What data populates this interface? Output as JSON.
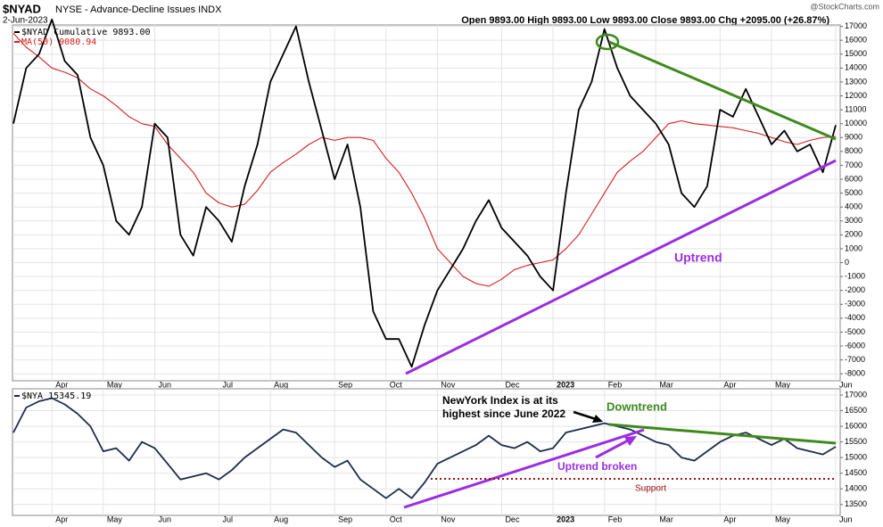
{
  "header": {
    "symbol": "$NYAD",
    "name": "NYSE - Advance-Decline Issues  INDX",
    "date": "2-Jun-2023",
    "quote": "Open 9893.00  High 9893.00  Low 9893.00  Close 9893.00  Chg +2095.00 (+26.87%)",
    "source": "@StockCharts.com"
  },
  "chart_data": [
    {
      "type": "line",
      "categories": [
        null,
        null,
        null,
        "Apr",
        null,
        null,
        null,
        "May",
        null,
        null,
        null,
        "Jun",
        null,
        null,
        null,
        null,
        "Jul",
        null,
        null,
        null,
        "Aug",
        null,
        null,
        null,
        null,
        "Sep",
        null,
        null,
        null,
        "Oct",
        null,
        null,
        null,
        "Nov",
        null,
        null,
        null,
        null,
        "Dec",
        null,
        null,
        null,
        "2023",
        null,
        null,
        null,
        "Feb",
        null,
        null,
        null,
        "Mar",
        null,
        null,
        null,
        null,
        "Apr",
        null,
        null,
        null,
        "May",
        null,
        null,
        null,
        null,
        "Jun"
      ],
      "series": [
        {
          "name": "$NYAD Cumulative 9893.00",
          "color": "#000000",
          "values": [
            10000,
            14000,
            15000,
            17500,
            14500,
            13500,
            9000,
            7000,
            3000,
            2000,
            4000,
            10000,
            9000,
            2000,
            500,
            4000,
            3000,
            1500,
            5500,
            8500,
            13000,
            15000,
            17000,
            13000,
            9500,
            6000,
            8500,
            4000,
            -3500,
            -5500,
            -5500,
            -7500,
            -4500,
            -2000,
            -500,
            1000,
            3000,
            4500,
            2500,
            1500,
            500,
            -1000,
            -2000,
            5000,
            11000,
            13000,
            16800,
            14000,
            12000,
            11000,
            10000,
            8500,
            5000,
            4000,
            5500,
            11000,
            10500,
            12500,
            10500,
            8500,
            9500,
            8000,
            8500,
            6500,
            9893
          ]
        },
        {
          "name": "MA(50) 9080.94",
          "color": "#d62020",
          "values": [
            16500,
            15500,
            14800,
            14000,
            13700,
            13300,
            12500,
            12000,
            11300,
            10500,
            10000,
            9800,
            8500,
            7500,
            6500,
            5000,
            4300,
            4000,
            4200,
            5200,
            6500,
            7200,
            7800,
            8500,
            9000,
            8800,
            9000,
            9000,
            8800,
            7500,
            6500,
            5000,
            3200,
            1000,
            0,
            -1000,
            -1500,
            -1700,
            -1200,
            -500,
            -200,
            0,
            200,
            1000,
            2000,
            3500,
            5000,
            6500,
            7300,
            8000,
            9000,
            10000,
            10200,
            10000,
            9900,
            9800,
            9700,
            9500,
            9300,
            9000,
            8700,
            8500,
            8800,
            9000,
            9080.94
          ]
        }
      ],
      "ylim": [
        -8500,
        17100
      ],
      "yticks": [
        -8000,
        -7000,
        -6000,
        -5000,
        -4000,
        -3000,
        -2000,
        -1000,
        0,
        1000,
        2000,
        3000,
        4000,
        5000,
        6000,
        7000,
        8000,
        9000,
        10000,
        11000,
        12000,
        13000,
        14000,
        15000,
        16000,
        17000
      ],
      "grid": true,
      "annotations": [
        "Uptrend"
      ]
    },
    {
      "type": "line",
      "categories": [
        null,
        null,
        null,
        "Apr",
        null,
        null,
        null,
        "May",
        null,
        null,
        null,
        "Jun",
        null,
        null,
        null,
        null,
        "Jul",
        null,
        null,
        null,
        "Aug",
        null,
        null,
        null,
        null,
        "Sep",
        null,
        null,
        null,
        "Oct",
        null,
        null,
        null,
        "Nov",
        null,
        null,
        null,
        null,
        "Dec",
        null,
        null,
        null,
        "2023",
        null,
        null,
        null,
        "Feb",
        null,
        null,
        null,
        "Mar",
        null,
        null,
        null,
        null,
        "Apr",
        null,
        null,
        null,
        "May",
        null,
        null,
        null,
        null,
        "Jun"
      ],
      "series": [
        {
          "name": "$NYA 15345.19",
          "color": "#1c2b4d",
          "values": [
            15800,
            16600,
            16800,
            16900,
            16700,
            16400,
            16000,
            15200,
            15300,
            14900,
            15500,
            15300,
            14800,
            14300,
            14400,
            14500,
            14300,
            14600,
            15000,
            15300,
            15600,
            15900,
            15800,
            15400,
            15000,
            14700,
            14900,
            14300,
            14000,
            13700,
            14000,
            13700,
            14200,
            14800,
            15000,
            15200,
            15400,
            15700,
            15400,
            15300,
            15500,
            15200,
            15300,
            15800,
            15900,
            16000,
            16100,
            16000,
            15900,
            15700,
            15500,
            15400,
            15000,
            14900,
            15200,
            15500,
            15700,
            15800,
            15600,
            15400,
            15600,
            15300,
            15200,
            15100,
            15345.19
          ]
        }
      ],
      "ylim": [
        13150,
        17200
      ],
      "yticks": [
        13500,
        14000,
        14500,
        15000,
        15500,
        16000,
        16500,
        17000
      ],
      "grid": true,
      "annotations": [
        "NewYork Index is at its",
        "highest since June 2022",
        "Downtrend",
        "Uptrend broken",
        "Support"
      ]
    }
  ]
}
